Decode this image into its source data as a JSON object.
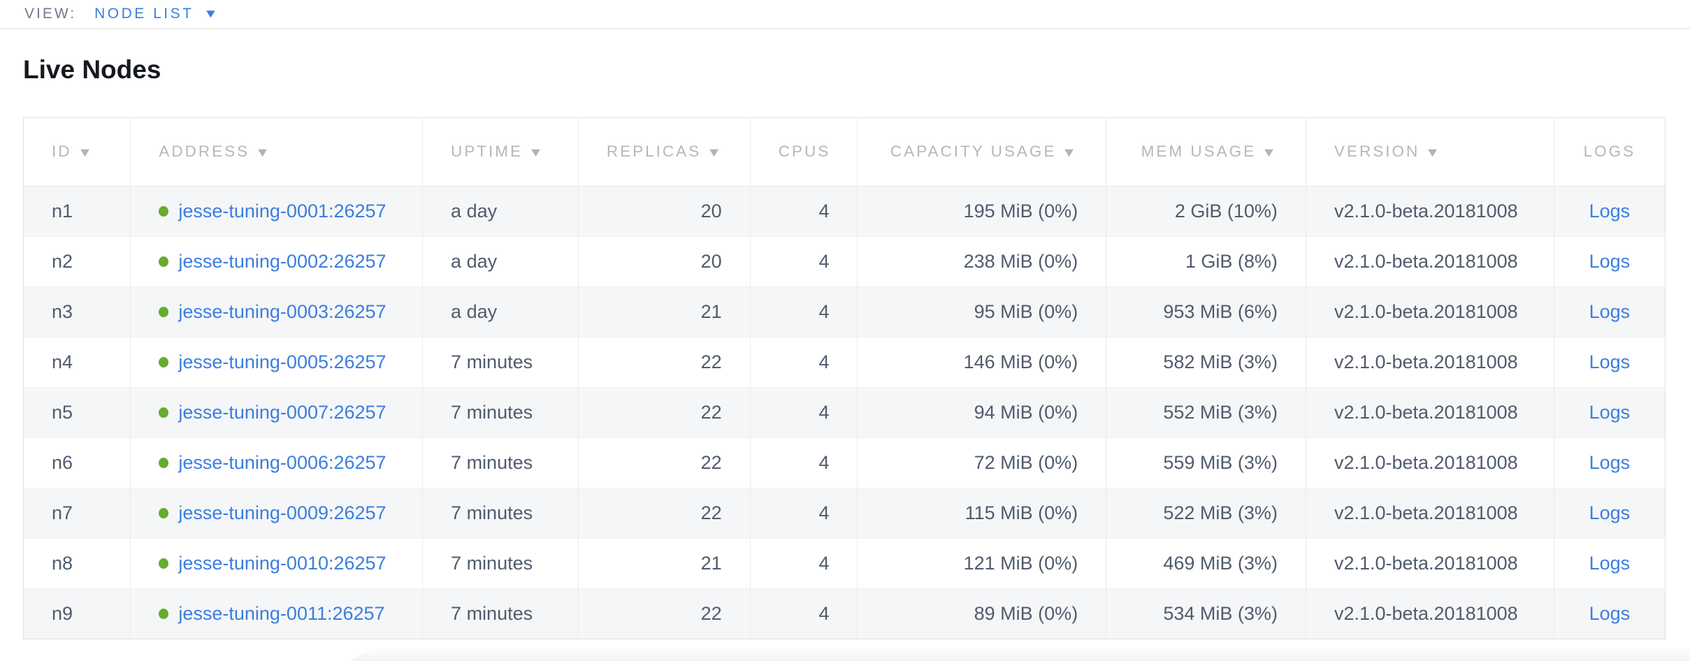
{
  "view_bar": {
    "label": "VIEW:",
    "selected": "NODE LIST"
  },
  "page": {
    "title": "Live Nodes"
  },
  "icons": {
    "sort_desc": "▼",
    "dropdown_caret": "▼",
    "live_status_dot": "●"
  },
  "colors": {
    "accent_blue": "#3b7de0",
    "live_green": "#67ab2f",
    "header_gray": "#b4b7bc",
    "cell_slate": "#505b6d",
    "stripe": "#f5f6f7"
  },
  "table": {
    "columns": [
      {
        "label": "ID",
        "key": "id",
        "align": "left",
        "sortable": true,
        "type": "text"
      },
      {
        "label": "ADDRESS",
        "key": "address",
        "align": "left",
        "sortable": true,
        "type": "address"
      },
      {
        "label": "UPTIME",
        "key": "uptime",
        "align": "left",
        "sortable": true,
        "type": "text"
      },
      {
        "label": "REPLICAS",
        "key": "replicas",
        "align": "right",
        "sortable": true,
        "type": "text"
      },
      {
        "label": "CPUS",
        "key": "cpus",
        "align": "right",
        "sortable": false,
        "type": "text"
      },
      {
        "label": "CAPACITY USAGE",
        "key": "capacity_usage",
        "align": "right",
        "sortable": true,
        "type": "text"
      },
      {
        "label": "MEM USAGE",
        "key": "mem_usage",
        "align": "right",
        "sortable": true,
        "type": "text"
      },
      {
        "label": "VERSION",
        "key": "version",
        "align": "left",
        "sortable": true,
        "type": "text"
      },
      {
        "label": "LOGS",
        "key": "logs",
        "align": "center",
        "sortable": false,
        "type": "link"
      }
    ],
    "rows": [
      {
        "id": "n1",
        "address": "jesse-tuning-0001:26257",
        "uptime": "a day",
        "replicas": "20",
        "cpus": "4",
        "capacity_usage": "195 MiB (0%)",
        "mem_usage": "2 GiB (10%)",
        "version": "v2.1.0-beta.20181008",
        "logs": "Logs"
      },
      {
        "id": "n2",
        "address": "jesse-tuning-0002:26257",
        "uptime": "a day",
        "replicas": "20",
        "cpus": "4",
        "capacity_usage": "238 MiB (0%)",
        "mem_usage": "1 GiB (8%)",
        "version": "v2.1.0-beta.20181008",
        "logs": "Logs"
      },
      {
        "id": "n3",
        "address": "jesse-tuning-0003:26257",
        "uptime": "a day",
        "replicas": "21",
        "cpus": "4",
        "capacity_usage": "95 MiB (0%)",
        "mem_usage": "953 MiB (6%)",
        "version": "v2.1.0-beta.20181008",
        "logs": "Logs"
      },
      {
        "id": "n4",
        "address": "jesse-tuning-0005:26257",
        "uptime": "7 minutes",
        "replicas": "22",
        "cpus": "4",
        "capacity_usage": "146 MiB (0%)",
        "mem_usage": "582 MiB (3%)",
        "version": "v2.1.0-beta.20181008",
        "logs": "Logs"
      },
      {
        "id": "n5",
        "address": "jesse-tuning-0007:26257",
        "uptime": "7 minutes",
        "replicas": "22",
        "cpus": "4",
        "capacity_usage": "94 MiB (0%)",
        "mem_usage": "552 MiB (3%)",
        "version": "v2.1.0-beta.20181008",
        "logs": "Logs"
      },
      {
        "id": "n6",
        "address": "jesse-tuning-0006:26257",
        "uptime": "7 minutes",
        "replicas": "22",
        "cpus": "4",
        "capacity_usage": "72 MiB (0%)",
        "mem_usage": "559 MiB (3%)",
        "version": "v2.1.0-beta.20181008",
        "logs": "Logs"
      },
      {
        "id": "n7",
        "address": "jesse-tuning-0009:26257",
        "uptime": "7 minutes",
        "replicas": "22",
        "cpus": "4",
        "capacity_usage": "115 MiB (0%)",
        "mem_usage": "522 MiB (3%)",
        "version": "v2.1.0-beta.20181008",
        "logs": "Logs"
      },
      {
        "id": "n8",
        "address": "jesse-tuning-0010:26257",
        "uptime": "7 minutes",
        "replicas": "21",
        "cpus": "4",
        "capacity_usage": "121 MiB (0%)",
        "mem_usage": "469 MiB (3%)",
        "version": "v2.1.0-beta.20181008",
        "logs": "Logs"
      },
      {
        "id": "n9",
        "address": "jesse-tuning-0011:26257",
        "uptime": "7 minutes",
        "replicas": "22",
        "cpus": "4",
        "capacity_usage": "89 MiB (0%)",
        "mem_usage": "534 MiB (3%)",
        "version": "v2.1.0-beta.20181008",
        "logs": "Logs"
      }
    ]
  }
}
